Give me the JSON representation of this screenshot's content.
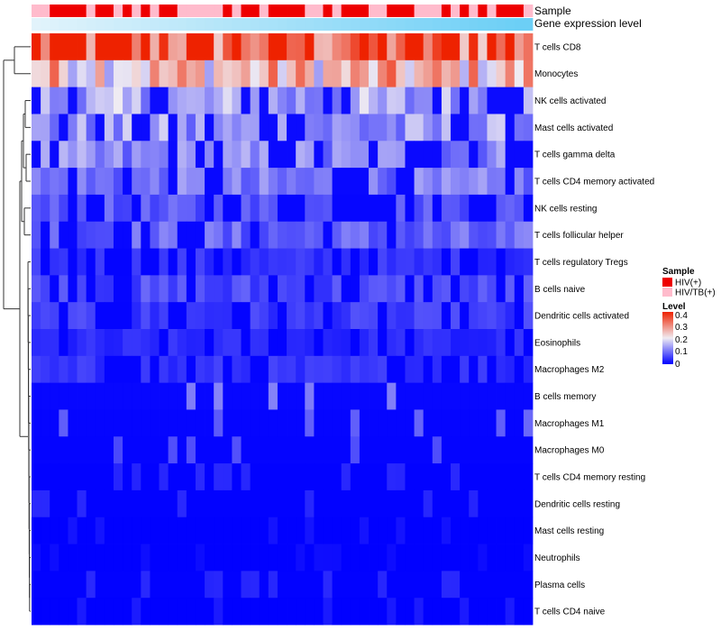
{
  "chart_data": {
    "type": "heatmap",
    "title": "",
    "annotation_rows": [
      "Sample",
      "Gene expression level"
    ],
    "sample_annotation": {
      "name": "Sample",
      "categories": [
        "HIV(+)",
        "HIV/TB(+)"
      ],
      "colors": {
        "HIV(+)": "#ee0000",
        "HIV/TB(+)": "#ffbbcc"
      },
      "values": [
        "HIV/TB(+)",
        "HIV/TB(+)",
        "HIV(+)",
        "HIV(+)",
        "HIV(+)",
        "HIV(+)",
        "HIV/TB(+)",
        "HIV(+)",
        "HIV(+)",
        "HIV/TB(+)",
        "HIV(+)",
        "HIV/TB(+)",
        "HIV(+)",
        "HIV/TB(+)",
        "HIV(+)",
        "HIV(+)",
        "HIV/TB(+)",
        "HIV/TB(+)",
        "HIV/TB(+)",
        "HIV/TB(+)",
        "HIV/TB(+)",
        "HIV(+)",
        "HIV/TB(+)",
        "HIV(+)",
        "HIV(+)",
        "HIV/TB(+)",
        "HIV(+)",
        "HIV(+)",
        "HIV(+)",
        "HIV(+)",
        "HIV/TB(+)",
        "HIV/TB(+)",
        "HIV(+)",
        "HIV/TB(+)",
        "HIV(+)",
        "HIV(+)",
        "HIV(+)",
        "HIV/TB(+)",
        "HIV/TB(+)",
        "HIV(+)",
        "HIV(+)",
        "HIV(+)",
        "HIV/TB(+)",
        "HIV/TB(+)",
        "HIV/TB(+)",
        "HIV(+)",
        "HIV/TB(+)",
        "HIV(+)",
        "HIV/TB(+)",
        "HIV(+)",
        "HIV/TB(+)",
        "HIV(+)",
        "HIV(+)",
        "HIV(+)",
        "HIV/TB(+)"
      ]
    },
    "gene_expression": {
      "name": "Gene expression level",
      "color_low": "#e4f4fb",
      "color_high": "#6ccff6",
      "values": [
        0.02,
        0.04,
        0.06,
        0.08,
        0.09,
        0.11,
        0.13,
        0.15,
        0.17,
        0.19,
        0.2,
        0.22,
        0.24,
        0.26,
        0.28,
        0.3,
        0.31,
        0.33,
        0.35,
        0.37,
        0.39,
        0.41,
        0.43,
        0.44,
        0.46,
        0.48,
        0.5,
        0.52,
        0.54,
        0.56,
        0.57,
        0.59,
        0.61,
        0.63,
        0.65,
        0.67,
        0.69,
        0.7,
        0.72,
        0.74,
        0.76,
        0.78,
        0.8,
        0.81,
        0.83,
        0.85,
        0.87,
        0.89,
        0.91,
        0.93,
        0.94,
        0.96,
        0.98,
        1.0,
        1.0
      ]
    },
    "rows": [
      "T cells CD8",
      "Monocytes",
      "NK cells activated",
      "Mast cells activated",
      "T cells gamma delta",
      "T cells CD4 memory activated",
      "NK cells resting",
      "T cells follicular helper",
      "T cells regulatory  Tregs",
      "B cells naive",
      "Dendritic cells activated",
      "Eosinophils",
      "Macrophages M2",
      "B cells memory",
      "Macrophages M1",
      "Macrophages M0",
      "T cells CD4 memory resting",
      "Dendritic cells resting",
      "Mast cells resting",
      "Neutrophils",
      "Plasma cells",
      "T cells CD4 naive"
    ],
    "n_columns": 55,
    "row_means": [
      0.36,
      0.24,
      0.1,
      0.09,
      0.08,
      0.07,
      0.05,
      0.06,
      0.03,
      0.045,
      0.035,
      0.025,
      0.03,
      0.02,
      0.015,
      0.012,
      0.006,
      0.006,
      0.003,
      0.002,
      0.006,
      0.004
    ],
    "color_scale": {
      "name": "Level",
      "low": "#0000ff",
      "mid": "#f0ecf2",
      "high": "#ee2200",
      "range": [
        0,
        0.4
      ],
      "breaks": [
        0.4,
        0.3,
        0.2,
        0.1,
        0
      ]
    },
    "legend_position": "right"
  },
  "labels": {
    "sample_annotation_label": "Sample",
    "gene_annotation_label": "Gene expression level",
    "legend_sample_title": "Sample",
    "legend_sample_items": [
      "HIV(+)",
      "HIV/TB(+)"
    ],
    "legend_level_title": "Level",
    "legend_level_ticks": [
      "0.4",
      "0.3",
      "0.2",
      "0.1",
      "0"
    ]
  }
}
